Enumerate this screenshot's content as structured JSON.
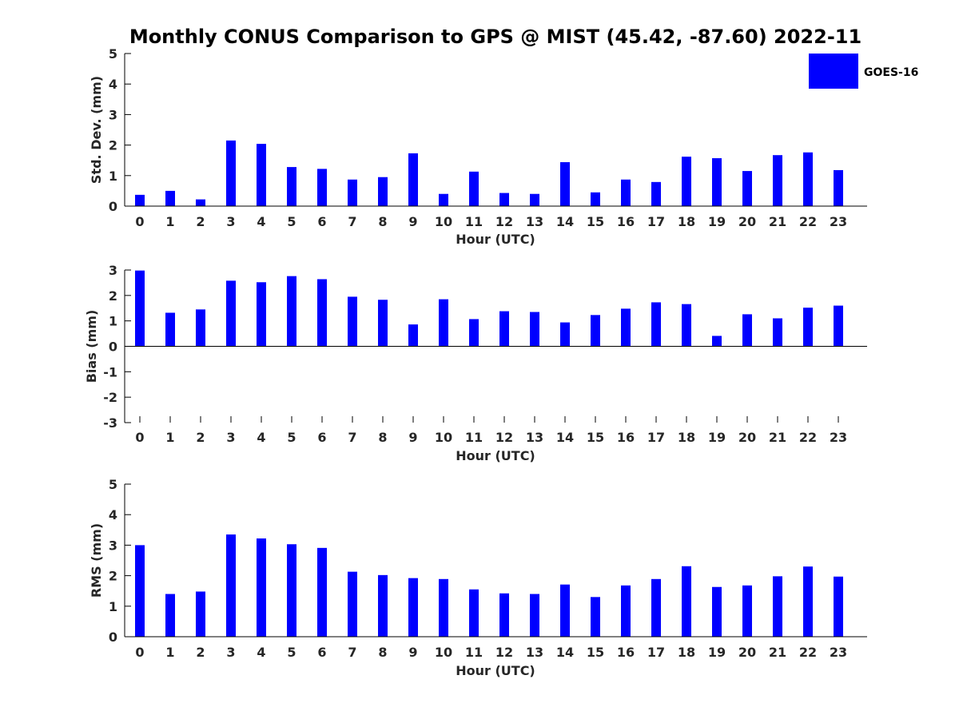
{
  "chart_data": {
    "title": "Monthly CONUS Comparison to GPS @ MIST (45.42, -87.60) 2022-11",
    "legend": {
      "label": "GOES-16",
      "color": "#0000ff",
      "placement": "top-right"
    },
    "bar_color": "#0000ff",
    "panels": [
      {
        "id": "std",
        "type": "bar",
        "xlabel": "Hour (UTC)",
        "ylabel": "Std. Dev. (mm)",
        "ylim": [
          0,
          5
        ],
        "yticks": [
          0,
          1,
          2,
          3,
          4,
          5
        ],
        "categories": [
          "0",
          "1",
          "2",
          "3",
          "4",
          "5",
          "6",
          "7",
          "8",
          "9",
          "10",
          "11",
          "12",
          "13",
          "14",
          "15",
          "16",
          "17",
          "18",
          "19",
          "20",
          "21",
          "22",
          "23"
        ],
        "series": [
          {
            "name": "GOES-16",
            "values": [
              0.37,
              0.5,
              0.22,
              2.15,
              2.04,
              1.28,
              1.22,
              0.87,
              0.95,
              1.73,
              0.4,
              1.13,
              0.43,
              0.4,
              1.44,
              0.45,
              0.87,
              0.79,
              1.62,
              1.57,
              1.15,
              1.67,
              1.76,
              1.18
            ]
          }
        ]
      },
      {
        "id": "bias",
        "type": "bar",
        "xlabel": "Hour (UTC)",
        "ylabel": "Bias (mm)",
        "ylim": [
          -3,
          3
        ],
        "yticks": [
          -3,
          -2,
          -1,
          0,
          1,
          2,
          3
        ],
        "categories": [
          "0",
          "1",
          "2",
          "3",
          "4",
          "5",
          "6",
          "7",
          "8",
          "9",
          "10",
          "11",
          "12",
          "13",
          "14",
          "15",
          "16",
          "17",
          "18",
          "19",
          "20",
          "21",
          "22",
          "23"
        ],
        "series": [
          {
            "name": "GOES-16",
            "values": [
              2.98,
              1.32,
              1.45,
              2.58,
              2.52,
              2.76,
              2.64,
              1.95,
              1.83,
              0.86,
              1.85,
              1.07,
              1.38,
              1.35,
              0.94,
              1.23,
              1.48,
              1.73,
              1.66,
              0.41,
              1.26,
              1.1,
              1.52,
              1.6
            ]
          }
        ]
      },
      {
        "id": "rms",
        "type": "bar",
        "xlabel": "Hour (UTC)",
        "ylabel": "RMS (mm)",
        "ylim": [
          0,
          5
        ],
        "yticks": [
          0,
          1,
          2,
          3,
          4,
          5
        ],
        "categories": [
          "0",
          "1",
          "2",
          "3",
          "4",
          "5",
          "6",
          "7",
          "8",
          "9",
          "10",
          "11",
          "12",
          "13",
          "14",
          "15",
          "16",
          "17",
          "18",
          "19",
          "20",
          "21",
          "22",
          "23"
        ],
        "series": [
          {
            "name": "GOES-16",
            "values": [
              3.0,
              1.4,
              1.48,
              3.35,
              3.22,
              3.03,
              2.91,
              2.13,
              2.02,
              1.92,
              1.89,
              1.55,
              1.42,
              1.4,
              1.71,
              1.3,
              1.68,
              1.89,
              2.31,
              1.63,
              1.68,
              1.98,
              2.3,
              1.97
            ]
          }
        ]
      }
    ]
  }
}
